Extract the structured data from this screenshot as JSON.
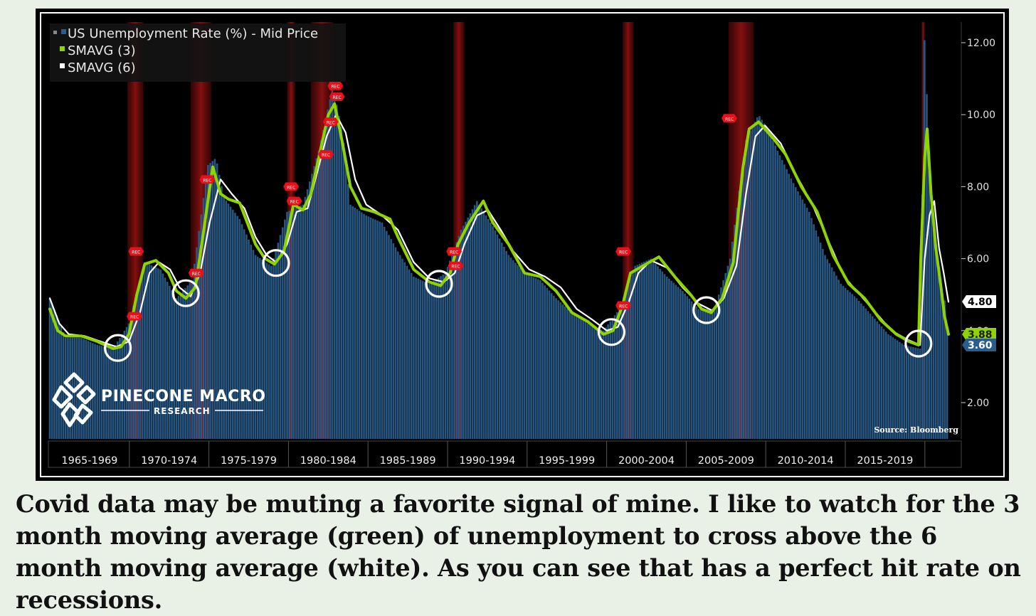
{
  "chart_data": {
    "type": "bar",
    "title": "",
    "ylim": [
      1.0,
      12.5
    ],
    "y_ticks": [
      2.0,
      4.0,
      6.0,
      8.0,
      10.0,
      12.0
    ],
    "y_tick_labels": [
      "2.00",
      "4.00",
      "6.00",
      "8.00",
      "10.00",
      "12.00"
    ],
    "periods": [
      "1965-1969",
      "1970-1974",
      "1975-1979",
      "1980-1984",
      "1985-1989",
      "1990-1994",
      "1995-1999",
      "2000-2004",
      "2005-2009",
      "2010-2014",
      "2015-2019"
    ],
    "x_range": [
      1965.0,
      2021.8
    ],
    "grid": false,
    "legend_position": "top-left",
    "series": [
      {
        "name": "US Unemployment Rate (%) - Mid Price",
        "color": "#2a5d8c",
        "kind": "bar",
        "points": [
          [
            1965.0,
            4.9
          ],
          [
            1966.0,
            3.8
          ],
          [
            1967.0,
            3.8
          ],
          [
            1968.0,
            3.6
          ],
          [
            1969.0,
            3.5
          ],
          [
            1970.0,
            4.2
          ],
          [
            1971.0,
            5.9
          ],
          [
            1972.0,
            5.7
          ],
          [
            1973.0,
            4.9
          ],
          [
            1974.0,
            5.4
          ],
          [
            1975.0,
            8.6
          ],
          [
            1975.5,
            8.8
          ],
          [
            1976.0,
            7.7
          ],
          [
            1977.0,
            7.1
          ],
          [
            1978.0,
            6.1
          ],
          [
            1979.0,
            5.8
          ],
          [
            1980.0,
            7.3
          ],
          [
            1981.0,
            7.5
          ],
          [
            1982.0,
            9.0
          ],
          [
            1982.9,
            10.8
          ],
          [
            1983.5,
            9.5
          ],
          [
            1984.0,
            7.5
          ],
          [
            1985.0,
            7.2
          ],
          [
            1986.0,
            7.0
          ],
          [
            1987.0,
            6.2
          ],
          [
            1988.0,
            5.5
          ],
          [
            1989.0,
            5.3
          ],
          [
            1990.0,
            5.6
          ],
          [
            1991.0,
            6.8
          ],
          [
            1992.0,
            7.6
          ],
          [
            1993.0,
            6.9
          ],
          [
            1994.0,
            6.1
          ],
          [
            1995.0,
            5.6
          ],
          [
            1996.0,
            5.4
          ],
          [
            1997.0,
            4.9
          ],
          [
            1998.0,
            4.5
          ],
          [
            1999.0,
            4.2
          ],
          [
            2000.0,
            4.0
          ],
          [
            2001.0,
            4.6
          ],
          [
            2002.0,
            5.8
          ],
          [
            2003.0,
            6.0
          ],
          [
            2004.0,
            5.5
          ],
          [
            2005.0,
            5.1
          ],
          [
            2006.0,
            4.6
          ],
          [
            2007.0,
            4.6
          ],
          [
            2008.0,
            6.0
          ],
          [
            2009.0,
            9.3
          ],
          [
            2009.8,
            10.0
          ],
          [
            2010.5,
            9.5
          ],
          [
            2011.0,
            9.0
          ],
          [
            2012.0,
            8.1
          ],
          [
            2013.0,
            7.3
          ],
          [
            2014.0,
            6.1
          ],
          [
            2015.0,
            5.3
          ],
          [
            2016.0,
            4.9
          ],
          [
            2017.0,
            4.4
          ],
          [
            2018.0,
            3.9
          ],
          [
            2019.0,
            3.6
          ],
          [
            2020.0,
            3.5
          ],
          [
            2020.3,
            12.5
          ],
          [
            2020.6,
            8.0
          ],
          [
            2021.0,
            6.2
          ],
          [
            2021.3,
            5.2
          ],
          [
            2021.6,
            4.8
          ],
          [
            2021.8,
            3.6
          ]
        ]
      },
      {
        "name": "SMAVG (3)",
        "color": "#8fd400",
        "kind": "line",
        "points": [
          [
            1965.0,
            4.6
          ],
          [
            1965.5,
            4.0
          ],
          [
            1966.0,
            3.85
          ],
          [
            1967.0,
            3.85
          ],
          [
            1968.0,
            3.7
          ],
          [
            1969.0,
            3.5
          ],
          [
            1969.5,
            3.55
          ],
          [
            1970.0,
            3.9
          ],
          [
            1970.5,
            5.0
          ],
          [
            1971.0,
            5.85
          ],
          [
            1971.7,
            5.95
          ],
          [
            1972.5,
            5.6
          ],
          [
            1973.0,
            5.1
          ],
          [
            1973.6,
            4.9
          ],
          [
            1974.2,
            5.2
          ],
          [
            1974.7,
            6.7
          ],
          [
            1975.3,
            8.55
          ],
          [
            1975.8,
            7.8
          ],
          [
            1976.3,
            7.65
          ],
          [
            1977.0,
            7.55
          ],
          [
            1978.0,
            6.4
          ],
          [
            1978.6,
            6.0
          ],
          [
            1979.2,
            5.85
          ],
          [
            1979.8,
            6.2
          ],
          [
            1980.4,
            7.5
          ],
          [
            1981.0,
            7.35
          ],
          [
            1981.5,
            7.8
          ],
          [
            1982.1,
            9.0
          ],
          [
            1982.6,
            10.0
          ],
          [
            1983.0,
            10.3
          ],
          [
            1983.5,
            9.2
          ],
          [
            1984.0,
            8.0
          ],
          [
            1984.7,
            7.4
          ],
          [
            1985.5,
            7.3
          ],
          [
            1986.5,
            7.1
          ],
          [
            1987.0,
            6.6
          ],
          [
            1988.0,
            5.7
          ],
          [
            1989.0,
            5.35
          ],
          [
            1989.7,
            5.25
          ],
          [
            1990.3,
            5.6
          ],
          [
            1990.8,
            6.4
          ],
          [
            1991.5,
            7.0
          ],
          [
            1992.4,
            7.6
          ],
          [
            1993.0,
            7.0
          ],
          [
            1994.0,
            6.4
          ],
          [
            1995.0,
            5.6
          ],
          [
            1996.0,
            5.5
          ],
          [
            1997.0,
            5.1
          ],
          [
            1998.0,
            4.5
          ],
          [
            1999.0,
            4.25
          ],
          [
            2000.0,
            3.9
          ],
          [
            2000.6,
            4.0
          ],
          [
            2001.2,
            4.7
          ],
          [
            2001.7,
            5.6
          ],
          [
            2002.5,
            5.8
          ],
          [
            2003.5,
            6.05
          ],
          [
            2004.5,
            5.5
          ],
          [
            2005.5,
            5.0
          ],
          [
            2006.2,
            4.6
          ],
          [
            2006.8,
            4.5
          ],
          [
            2007.5,
            4.9
          ],
          [
            2008.2,
            5.9
          ],
          [
            2008.8,
            8.5
          ],
          [
            2009.2,
            9.6
          ],
          [
            2009.8,
            9.8
          ],
          [
            2010.8,
            9.3
          ],
          [
            2011.5,
            8.9
          ],
          [
            2012.5,
            8.0
          ],
          [
            2013.5,
            7.3
          ],
          [
            2014.5,
            6.1
          ],
          [
            2015.5,
            5.3
          ],
          [
            2016.5,
            4.9
          ],
          [
            2017.5,
            4.3
          ],
          [
            2018.5,
            3.9
          ],
          [
            2019.3,
            3.7
          ],
          [
            2019.9,
            3.6
          ],
          [
            2020.05,
            6.0
          ],
          [
            2020.3,
            8.8
          ],
          [
            2020.45,
            9.6
          ],
          [
            2020.7,
            7.8
          ],
          [
            2021.0,
            6.3
          ],
          [
            2021.3,
            5.3
          ],
          [
            2021.55,
            4.4
          ],
          [
            2021.8,
            3.9
          ]
        ]
      },
      {
        "name": "SMAVG (6)",
        "color": "#ffffff",
        "kind": "line",
        "points": [
          [
            1965.0,
            4.9
          ],
          [
            1965.6,
            4.2
          ],
          [
            1966.2,
            3.9
          ],
          [
            1967.2,
            3.85
          ],
          [
            1968.2,
            3.7
          ],
          [
            1969.2,
            3.55
          ],
          [
            1970.0,
            3.7
          ],
          [
            1970.7,
            4.5
          ],
          [
            1971.3,
            5.6
          ],
          [
            1971.9,
            5.9
          ],
          [
            1972.6,
            5.7
          ],
          [
            1973.2,
            5.2
          ],
          [
            1973.9,
            4.95
          ],
          [
            1974.5,
            5.6
          ],
          [
            1975.1,
            7.0
          ],
          [
            1975.8,
            8.2
          ],
          [
            1976.5,
            7.8
          ],
          [
            1977.3,
            7.4
          ],
          [
            1978.0,
            6.6
          ],
          [
            1978.7,
            6.1
          ],
          [
            1979.3,
            5.9
          ],
          [
            1980.0,
            6.4
          ],
          [
            1980.6,
            7.3
          ],
          [
            1981.3,
            7.4
          ],
          [
            1981.9,
            8.4
          ],
          [
            1982.5,
            9.4
          ],
          [
            1983.1,
            10.0
          ],
          [
            1983.7,
            9.5
          ],
          [
            1984.3,
            8.2
          ],
          [
            1985.0,
            7.5
          ],
          [
            1986.0,
            7.2
          ],
          [
            1987.0,
            6.8
          ],
          [
            1988.0,
            5.9
          ],
          [
            1989.0,
            5.45
          ],
          [
            1989.9,
            5.35
          ],
          [
            1990.6,
            5.6
          ],
          [
            1991.2,
            6.4
          ],
          [
            1992.0,
            7.2
          ],
          [
            1992.7,
            7.35
          ],
          [
            1993.5,
            6.8
          ],
          [
            1994.3,
            6.2
          ],
          [
            1995.3,
            5.7
          ],
          [
            1996.3,
            5.5
          ],
          [
            1997.3,
            5.2
          ],
          [
            1998.3,
            4.6
          ],
          [
            1999.3,
            4.3
          ],
          [
            2000.2,
            4.0
          ],
          [
            2000.9,
            4.1
          ],
          [
            2001.6,
            4.8
          ],
          [
            2002.2,
            5.6
          ],
          [
            2003.0,
            5.95
          ],
          [
            2004.0,
            5.75
          ],
          [
            2005.0,
            5.2
          ],
          [
            2006.0,
            4.75
          ],
          [
            2006.9,
            4.55
          ],
          [
            2007.6,
            4.9
          ],
          [
            2008.4,
            5.8
          ],
          [
            2009.0,
            7.8
          ],
          [
            2009.6,
            9.4
          ],
          [
            2010.2,
            9.7
          ],
          [
            2011.2,
            9.2
          ],
          [
            2012.2,
            8.3
          ],
          [
            2013.2,
            7.5
          ],
          [
            2014.2,
            6.5
          ],
          [
            2015.2,
            5.5
          ],
          [
            2016.2,
            5.0
          ],
          [
            2017.2,
            4.5
          ],
          [
            2018.2,
            4.0
          ],
          [
            2019.2,
            3.75
          ],
          [
            2020.0,
            3.6
          ],
          [
            2020.3,
            6.0
          ],
          [
            2020.6,
            7.2
          ],
          [
            2020.9,
            7.6
          ],
          [
            2021.2,
            6.3
          ],
          [
            2021.5,
            5.6
          ],
          [
            2021.8,
            4.8
          ]
        ]
      }
    ],
    "recessions": [
      [
        1969.9,
        1970.9
      ],
      [
        1973.9,
        1975.2
      ],
      [
        1980.0,
        1980.5
      ],
      [
        1981.5,
        1982.9
      ],
      [
        1990.5,
        1991.2
      ],
      [
        2001.2,
        2001.9
      ],
      [
        2007.9,
        2009.5
      ],
      [
        2020.1,
        2020.3
      ]
    ],
    "recession_marker_label": "REC",
    "recession_markers": [
      [
        1970.5,
        6.2
      ],
      [
        1970.4,
        4.4
      ],
      [
        1974.3,
        5.6
      ],
      [
        1975.0,
        8.2
      ],
      [
        1980.3,
        8.0
      ],
      [
        1980.5,
        7.6
      ],
      [
        1982.5,
        8.9
      ],
      [
        1982.8,
        9.8
      ],
      [
        1983.1,
        10.8
      ],
      [
        1983.2,
        10.5
      ],
      [
        1990.6,
        6.2
      ],
      [
        1990.7,
        5.8
      ],
      [
        2001.3,
        6.2
      ],
      [
        2001.3,
        4.7
      ],
      [
        2008.0,
        9.9
      ]
    ],
    "crossover_circles": [
      [
        1969.3,
        3.52
      ],
      [
        1973.6,
        5.04
      ],
      [
        1979.3,
        5.88
      ],
      [
        1989.6,
        5.3
      ],
      [
        2000.5,
        3.96
      ],
      [
        2006.5,
        4.57
      ],
      [
        2019.9,
        3.64
      ]
    ],
    "last_values": [
      {
        "series": "SMAVG (6)",
        "label": "4.80",
        "bg": "#ffffff",
        "fg": "#000000",
        "value": 4.8
      },
      {
        "series": "SMAVG (3)",
        "label": "3.88",
        "bg": "#8fd400",
        "fg": "#1a1a1a",
        "value": 3.88
      },
      {
        "series": "US Unemployment Rate (%) - Mid Price",
        "label": "3.60",
        "bg": "#2a5d8c",
        "fg": "#ffffff",
        "value": 3.6
      }
    ],
    "annotation_colors": {
      "recession_band": "#8a1212",
      "recession_marker": "#e8101a",
      "circle": "#ffffff",
      "background": "#000000"
    }
  },
  "logo": {
    "name": "PINECONE MACRO",
    "sub": "RESEARCH"
  },
  "source": "Source: Bloomberg",
  "caption": "Covid data may be muting a favorite signal of mine. I like to watch for the 3 month moving average (green) of unemployment to cross above the 6 month moving average (white). As you can see that has a perfect hit rate on recessions."
}
